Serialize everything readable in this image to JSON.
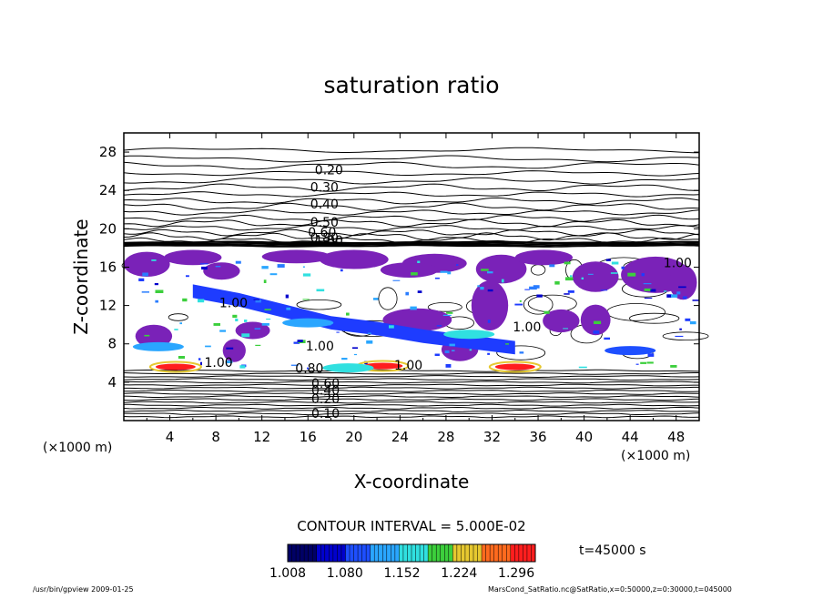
{
  "chart_data": {
    "type": "heatmap",
    "title": "saturation ratio",
    "xlabel": "X-coordinate",
    "ylabel": "Z-coordinate",
    "x_unit": "(×1000 m)",
    "y_unit": "(×1000 m)",
    "xlim": [
      0,
      50
    ],
    "ylim": [
      0,
      30
    ],
    "x_ticks": [
      "4",
      "8",
      "12",
      "16",
      "20",
      "24",
      "28",
      "32",
      "36",
      "40",
      "44",
      "48"
    ],
    "y_ticks": [
      "4",
      "8",
      "12",
      "16",
      "20",
      "24",
      "28"
    ],
    "contour_interval_label": "CONTOUR INTERVAL = 5.000E-02",
    "time_label": "t=45000 s",
    "colorbar": {
      "ticks": [
        "1.008",
        "1.080",
        "1.152",
        "1.224",
        "1.296"
      ],
      "min": 1.008,
      "max": 1.32,
      "colors": [
        "#000066",
        "#0000cc",
        "#1e4fff",
        "#2aa6ff",
        "#30e0e0",
        "#3ccf3c",
        "#e6c830",
        "#ff6a1e",
        "#ff1e1e"
      ]
    },
    "contour_labels": [
      {
        "text": "0.20",
        "x": 16.6,
        "y": 25.7
      },
      {
        "text": "0.30",
        "x": 16.2,
        "y": 23.9
      },
      {
        "text": "0.40",
        "x": 16.2,
        "y": 22.1
      },
      {
        "text": "0.50",
        "x": 16.2,
        "y": 20.2
      },
      {
        "text": "0.60",
        "x": 16.0,
        "y": 19.2
      },
      {
        "text": "0.80",
        "x": 16.2,
        "y": 18.6
      },
      {
        "text": "1.00",
        "x": 16.6,
        "y": 18.3
      },
      {
        "text": "1.00",
        "x": 46.9,
        "y": 16.0
      },
      {
        "text": "1.00",
        "x": 8.3,
        "y": 11.8
      },
      {
        "text": "1.00",
        "x": 33.8,
        "y": 9.3
      },
      {
        "text": "1.00",
        "x": 15.8,
        "y": 7.3
      },
      {
        "text": "1.00",
        "x": 7.0,
        "y": 5.6
      },
      {
        "text": "1.00",
        "x": 23.5,
        "y": 5.3
      },
      {
        "text": "0.80",
        "x": 14.9,
        "y": 5.0
      },
      {
        "text": "0.60",
        "x": 16.3,
        "y": 3.4
      },
      {
        "text": "0.40",
        "x": 16.3,
        "y": 2.7
      },
      {
        "text": "0.20",
        "x": 16.3,
        "y": 1.8
      },
      {
        "text": "0.10",
        "x": 16.3,
        "y": 0.3
      }
    ],
    "supersaturated_regions": [
      {
        "x": 4.5,
        "y": 5.6,
        "value": 1.3
      },
      {
        "x": 22.5,
        "y": 5.7,
        "value": 1.29
      },
      {
        "x": 34.0,
        "y": 5.6,
        "value": 1.3
      },
      {
        "x": 19.5,
        "y": 5.5,
        "value": 1.15
      },
      {
        "x": 16.0,
        "y": 10.2,
        "value": 1.12
      },
      {
        "x": 30.0,
        "y": 9.0,
        "value": 1.15
      },
      {
        "x": 3.0,
        "y": 7.7,
        "value": 1.12
      },
      {
        "x": 44.0,
        "y": 7.3,
        "value": 1.1
      }
    ]
  },
  "footer": {
    "left": "/usr/bin/gpview  2009-01-25",
    "right": "MarsCond_SatRatio.nc@SatRatio,x=0:50000,z=0:30000,t=045000"
  }
}
